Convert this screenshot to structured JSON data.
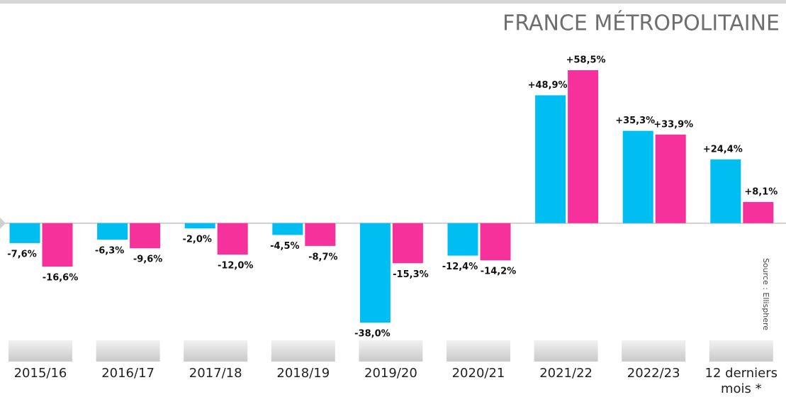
{
  "chart_data": {
    "type": "bar",
    "title": "FRANCE MÉTROPOLITAINE",
    "source": "Source : Ellisphere",
    "categories": [
      "2015/16",
      "2016/17",
      "2017/18",
      "2018/19",
      "2019/20",
      "2020/21",
      "2021/22",
      "2022/23",
      "12 derniers mois *"
    ],
    "series": [
      {
        "color": "#00bdf2",
        "values": [
          -7.6,
          -6.3,
          -2.0,
          -4.5,
          -38.0,
          -12.4,
          48.9,
          35.3,
          24.4
        ],
        "value_labels": [
          "-7,6%",
          "-6,3%",
          "-2,0%",
          "-4,5%",
          "-38,0%",
          "-12,4%",
          "+48,9%",
          "+35,3%",
          "+24,4%"
        ]
      },
      {
        "color": "#f7319c",
        "values": [
          -16.6,
          -9.6,
          -12.0,
          -8.7,
          -15.3,
          -14.2,
          58.5,
          33.9,
          8.1
        ],
        "value_labels": [
          "-16,6%",
          "-9,6%",
          "-12,0%",
          "-8,7%",
          "-15,3%",
          "-14,2%",
          "+58,5%",
          "+33,9%",
          "+8,1%"
        ]
      }
    ]
  }
}
